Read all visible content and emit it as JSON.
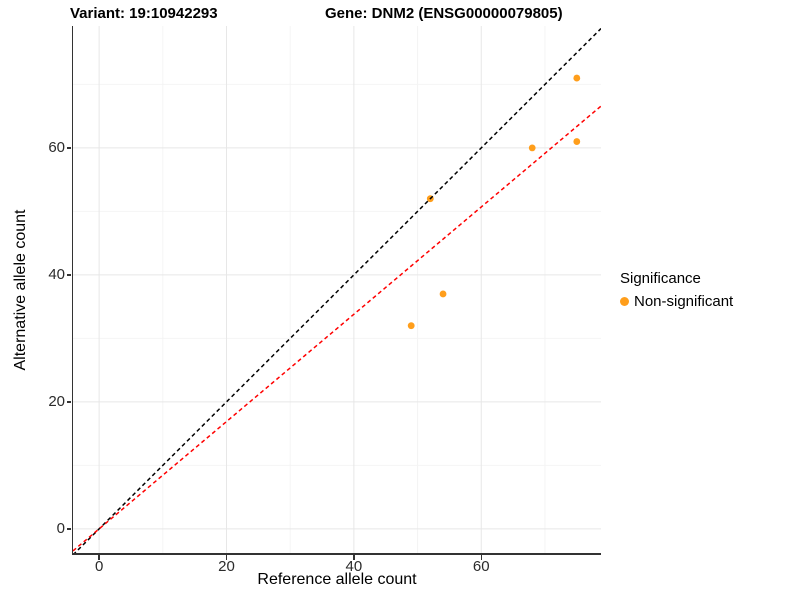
{
  "chart_data": {
    "type": "scatter",
    "titles": {
      "left": "Variant: 19:10942293",
      "right": "Gene: DNM2 (ENSG00000079805)"
    },
    "xlabel": "Reference allele count",
    "ylabel": "Alternative allele count",
    "xlim": [
      -4.1,
      78.8
    ],
    "ylim": [
      -3.8,
      79.2
    ],
    "xticks": [
      0,
      20,
      40,
      60
    ],
    "yticks": [
      0,
      20,
      40,
      60
    ],
    "xminor": [
      10,
      30,
      50,
      70
    ],
    "yminor": [
      10,
      30,
      50,
      70
    ],
    "grid": {
      "major_color": "#E7E7E7",
      "minor_color": "#F4F4F4",
      "on": true
    },
    "axis_color": "#333333",
    "point_radius": 3.4,
    "series": [
      {
        "name": "Non-significant",
        "color": "#FF9E1B",
        "points": [
          {
            "x": 49,
            "y": 32
          },
          {
            "x": 54,
            "y": 37
          },
          {
            "x": 52,
            "y": 52
          },
          {
            "x": 68,
            "y": 60
          },
          {
            "x": 75,
            "y": 61
          },
          {
            "x": 75,
            "y": 71
          }
        ]
      }
    ],
    "lines": [
      {
        "name": "identity-line",
        "slope": 1,
        "intercept": 0,
        "color": "#000000",
        "style": "dashed"
      },
      {
        "name": "expected-ratio-line",
        "slope": 0.845,
        "intercept": 0,
        "color": "#FF0000",
        "style": "dashed"
      }
    ],
    "legend": {
      "title": "Significance",
      "position": "right",
      "items": [
        {
          "label": "Non-significant",
          "color": "#FF9E1B"
        }
      ]
    }
  }
}
